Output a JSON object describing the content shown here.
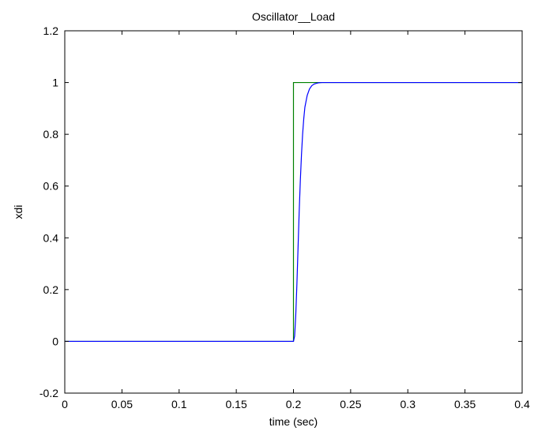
{
  "chart_data": {
    "type": "line",
    "title": "Oscillator__Load",
    "xlabel": "time (sec)",
    "ylabel": "xdi",
    "xlim": [
      0,
      0.4
    ],
    "ylim": [
      -0.2,
      1.2
    ],
    "xticks": [
      0,
      0.05,
      0.1,
      0.15,
      0.2,
      0.25,
      0.3,
      0.35,
      0.4
    ],
    "yticks": [
      -0.2,
      0,
      0.2,
      0.4,
      0.6,
      0.8,
      1,
      1.2
    ],
    "xtick_labels": [
      "0",
      "0.05",
      "0.1",
      "0.15",
      "0.2",
      "0.25",
      "0.3",
      "0.35",
      "0.4"
    ],
    "ytick_labels": [
      "-0.2",
      "0",
      "0.2",
      "0.4",
      "0.6",
      "0.8",
      "1",
      "1.2"
    ],
    "grid": false,
    "series": [
      {
        "color": "#008000",
        "x": [
          0,
          0.2,
          0.2,
          0.4
        ],
        "y": [
          0,
          0,
          1,
          1
        ]
      },
      {
        "color": "#0000ff",
        "x": [
          0,
          0.2,
          0.201,
          0.202,
          0.203,
          0.204,
          0.205,
          0.206,
          0.207,
          0.208,
          0.209,
          0.21,
          0.212,
          0.214,
          0.216,
          0.218,
          0.22,
          0.222,
          0.225,
          0.23,
          0.4
        ],
        "y": [
          0,
          0,
          0.02,
          0.1,
          0.22,
          0.36,
          0.5,
          0.62,
          0.72,
          0.8,
          0.86,
          0.905,
          0.95,
          0.975,
          0.988,
          0.994,
          0.997,
          0.999,
          1,
          1,
          1
        ]
      }
    ]
  }
}
